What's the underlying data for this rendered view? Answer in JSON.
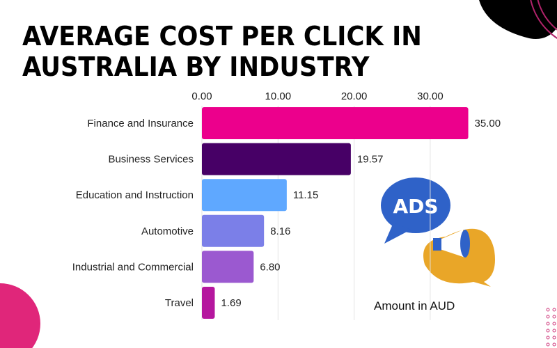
{
  "chart_data": {
    "type": "bar",
    "orientation": "horizontal",
    "title": "AVERAGE COST PER CLICK IN AUSTRALIA BY INDUSTRY",
    "categories": [
      "Finance and Insurance",
      "Business Services",
      "Education and Instruction",
      "Automotive",
      "Industrial and Commercial",
      "Travel"
    ],
    "values": [
      35.0,
      19.57,
      11.15,
      8.16,
      6.8,
      1.69
    ],
    "data_labels": [
      "35.00",
      "19.57",
      "11.15",
      "8.16",
      "6.80",
      "1.69"
    ],
    "colors": [
      "#ec008c",
      "#470066",
      "#5fa8ff",
      "#7b7fe8",
      "#9b59d0",
      "#b5179e"
    ],
    "xticks": [
      "0.00",
      "10.00",
      "20.00",
      "30.00"
    ],
    "xtick_values": [
      0,
      10,
      20,
      30
    ],
    "xlim": [
      0,
      35
    ],
    "xaxis_position": "top",
    "xlabel": "Amount in AUD",
    "grid": true
  },
  "decor": {
    "ads_badge": "ADS"
  }
}
